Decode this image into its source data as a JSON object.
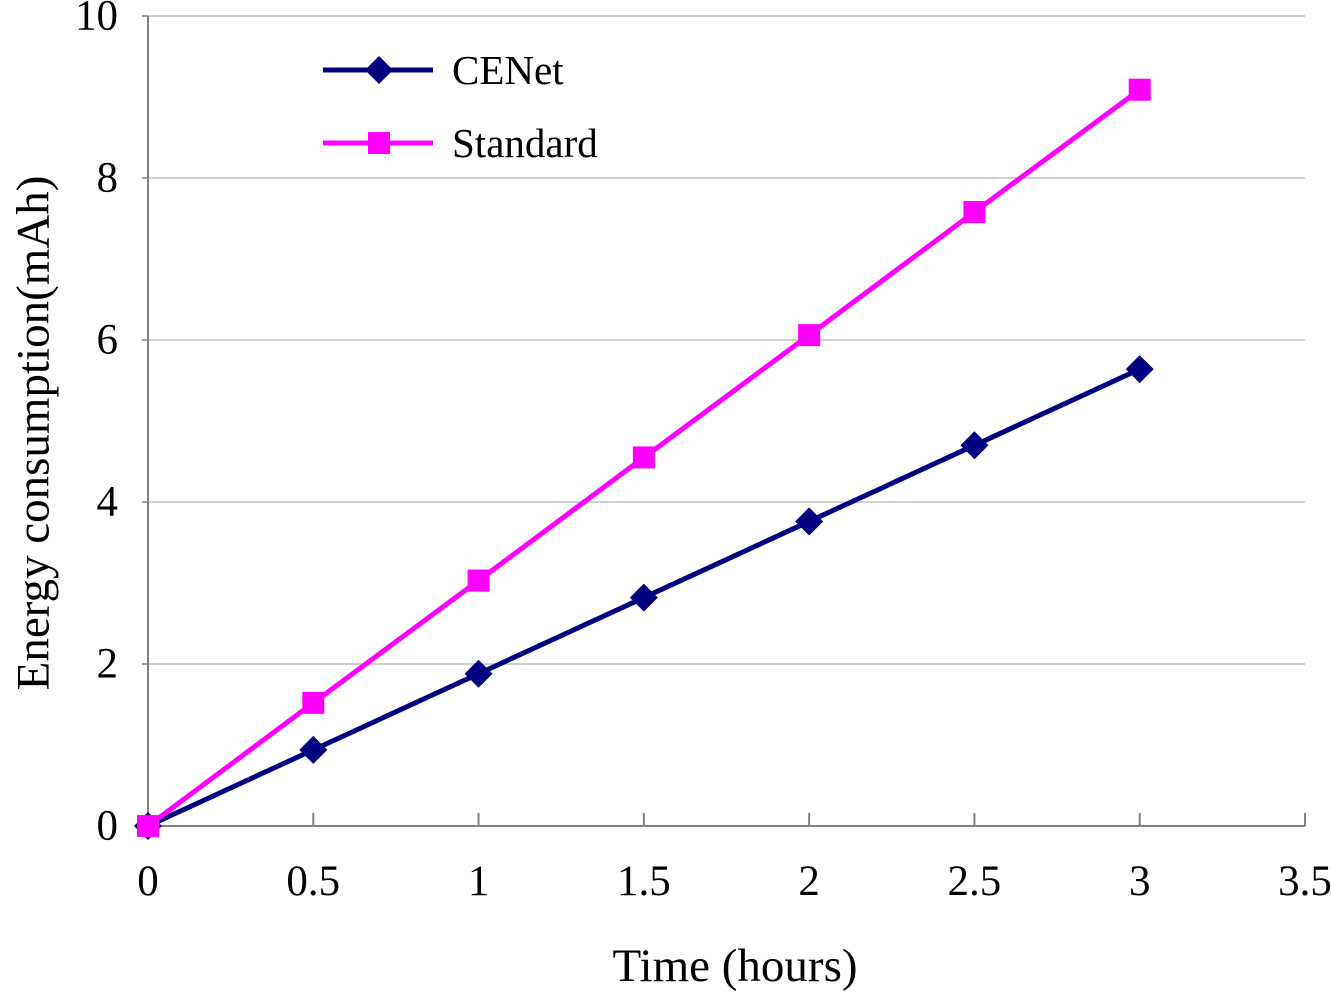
{
  "chart_data": {
    "type": "line",
    "title": "",
    "xlabel": "Time (hours)",
    "ylabel": "Energy consumption(mAh)",
    "x": [
      0,
      0.5,
      1,
      1.5,
      2,
      2.5,
      3
    ],
    "series": [
      {
        "name": "CENet",
        "color": "#000080",
        "marker": "diamond",
        "values": [
          0,
          0.94,
          1.88,
          2.82,
          3.76,
          4.7,
          5.64
        ]
      },
      {
        "name": "Standard",
        "color": "#ff00ff",
        "marker": "square",
        "values": [
          0,
          1.52,
          3.03,
          4.55,
          6.06,
          7.58,
          9.09
        ]
      }
    ],
    "xlim": [
      0,
      3.5
    ],
    "ylim": [
      0,
      10
    ],
    "x_tick_values": [
      0,
      0.5,
      1,
      1.5,
      2,
      2.5,
      3,
      3.5
    ],
    "x_tick_labels": [
      "0",
      "0.5",
      "1",
      "1.5",
      "2",
      "2.5",
      "3",
      "3.5"
    ],
    "y_tick_values": [
      0,
      2,
      4,
      6,
      8,
      10
    ],
    "y_tick_labels": [
      "0",
      "2",
      "4",
      "6",
      "8",
      "10"
    ],
    "grid": "horizontal",
    "legend_position": "top-left-inside",
    "colors": {
      "gridline": "#c1c1c1",
      "axis": "#808080",
      "tick": "#808080",
      "text": "#000000",
      "background": "#ffffff"
    }
  }
}
